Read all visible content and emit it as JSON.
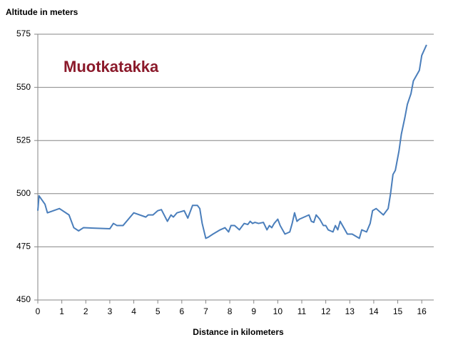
{
  "chart_data": {
    "type": "line",
    "y_label": "Altitude in meters",
    "x_label": "Distance in kilometers",
    "annotation": "Muotkatakka",
    "xlim": [
      0,
      16.5
    ],
    "xticks": [
      0,
      1,
      2,
      3,
      4,
      5,
      6,
      7,
      8,
      9,
      10,
      11,
      12,
      13,
      14,
      15,
      16
    ],
    "ylim": [
      450,
      575
    ],
    "yticks": [
      450,
      475,
      500,
      525,
      550,
      575
    ],
    "grid": true,
    "series": [
      {
        "name": "Altitude",
        "color": "#4a7ebb",
        "x": [
          0,
          0.05,
          0.3,
          0.4,
          0.9,
          1.3,
          1.5,
          1.7,
          1.9,
          3.0,
          3.15,
          3.3,
          3.55,
          4.0,
          4.5,
          4.6,
          4.8,
          5.0,
          5.15,
          5.4,
          5.55,
          5.65,
          5.8,
          6.1,
          6.25,
          6.45,
          6.65,
          6.75,
          6.85,
          7.0,
          7.1,
          7.3,
          7.6,
          7.8,
          7.95,
          8.05,
          8.2,
          8.4,
          8.6,
          8.75,
          8.85,
          8.95,
          9.05,
          9.2,
          9.4,
          9.55,
          9.65,
          9.75,
          9.85,
          10.0,
          10.1,
          10.3,
          10.5,
          10.6,
          10.7,
          10.8,
          10.9,
          11.3,
          11.4,
          11.5,
          11.6,
          11.75,
          11.9,
          12.0,
          12.1,
          12.3,
          12.4,
          12.5,
          12.6,
          12.9,
          13.1,
          13.4,
          13.5,
          13.7,
          13.85,
          13.95,
          14.1,
          14.4,
          14.6,
          14.7,
          14.8,
          14.9,
          15.05,
          15.15,
          15.3,
          15.4,
          15.55,
          15.65,
          15.9,
          16.0,
          16.2
        ],
        "values": [
          492,
          499,
          495,
          491,
          493,
          490,
          484,
          482.5,
          484,
          483.5,
          486,
          485,
          485,
          491,
          489,
          490,
          490,
          492,
          492.5,
          487,
          490,
          489,
          491,
          492,
          488.5,
          494.5,
          494.5,
          493,
          486,
          479,
          479.5,
          481,
          483,
          484,
          482,
          485,
          485,
          483,
          486,
          485.5,
          487,
          486,
          486.5,
          486,
          486.5,
          483,
          485,
          484,
          486,
          488,
          485,
          481,
          482,
          486,
          491,
          487,
          488,
          490,
          487,
          486.5,
          490,
          488,
          485,
          485,
          483,
          482,
          485,
          483,
          487,
          481,
          481,
          479,
          483,
          482,
          486,
          492,
          493,
          490,
          493,
          500,
          509,
          511,
          520,
          528,
          536,
          542,
          547,
          553,
          558,
          565,
          570
        ]
      }
    ]
  }
}
